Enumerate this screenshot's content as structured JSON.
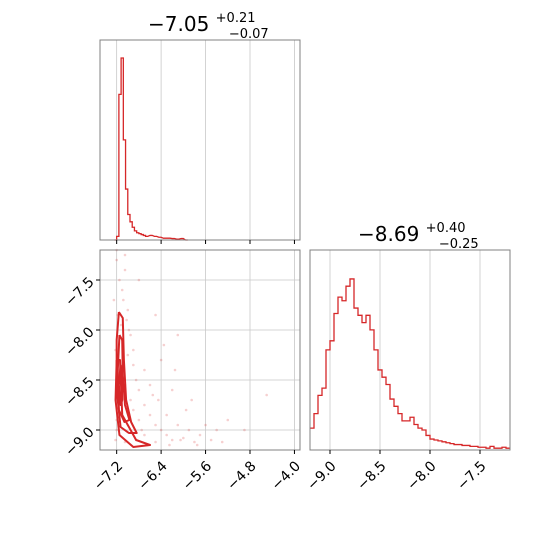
{
  "chart_data": [
    {
      "type": "histogram",
      "panel": "marginal-param1",
      "title": "−7.05",
      "title_sup": "+0.21",
      "title_sub": "−0.07",
      "color": "#d62728",
      "xlim": [
        -7.5,
        -3.9
      ],
      "grid": true,
      "x_ticks": [
        -7.2,
        -6.4,
        -5.6,
        -4.8,
        -4.0
      ],
      "bins": [
        [
          -7.24,
          0.0
        ],
        [
          -7.2,
          0.02
        ],
        [
          -7.16,
          0.8
        ],
        [
          -7.12,
          1.0
        ],
        [
          -7.08,
          0.55
        ],
        [
          -7.04,
          0.28
        ],
        [
          -7.0,
          0.14
        ],
        [
          -6.96,
          0.1
        ],
        [
          -6.92,
          0.07
        ],
        [
          -6.88,
          0.05
        ],
        [
          -6.84,
          0.04
        ],
        [
          -6.8,
          0.035
        ],
        [
          -6.76,
          0.03
        ],
        [
          -6.72,
          0.025
        ],
        [
          -6.68,
          0.02
        ],
        [
          -6.6,
          0.025
        ],
        [
          -6.52,
          0.02
        ],
        [
          -6.44,
          0.015
        ],
        [
          -6.36,
          0.01
        ],
        [
          -6.28,
          0.01
        ],
        [
          -6.2,
          0.008
        ],
        [
          -6.12,
          0.005
        ],
        [
          -6.04,
          0.008
        ],
        [
          -5.96,
          0.0
        ]
      ]
    },
    {
      "type": "histogram",
      "panel": "marginal-param2",
      "title": "−8.69",
      "title_sup": "+0.40",
      "title_sub": "−0.25",
      "color": "#d62728",
      "xlim": [
        -9.2,
        -7.2
      ],
      "grid": true,
      "x_ticks": [
        -9.0,
        -8.5,
        -8.0,
        -7.5
      ],
      "bins": [
        [
          -9.2,
          0.12
        ],
        [
          -9.16,
          0.2
        ],
        [
          -9.12,
          0.3
        ],
        [
          -9.08,
          0.34
        ],
        [
          -9.04,
          0.55
        ],
        [
          -9.0,
          0.6
        ],
        [
          -8.96,
          0.75
        ],
        [
          -8.92,
          0.84
        ],
        [
          -8.88,
          0.82
        ],
        [
          -8.84,
          0.9
        ],
        [
          -8.8,
          0.94
        ],
        [
          -8.76,
          0.78
        ],
        [
          -8.72,
          0.74
        ],
        [
          -8.68,
          0.7
        ],
        [
          -8.64,
          0.74
        ],
        [
          -8.6,
          0.66
        ],
        [
          -8.56,
          0.55
        ],
        [
          -8.52,
          0.44
        ],
        [
          -8.48,
          0.4
        ],
        [
          -8.44,
          0.36
        ],
        [
          -8.4,
          0.28
        ],
        [
          -8.36,
          0.24
        ],
        [
          -8.32,
          0.2
        ],
        [
          -8.28,
          0.16
        ],
        [
          -8.24,
          0.16
        ],
        [
          -8.2,
          0.18
        ],
        [
          -8.16,
          0.14
        ],
        [
          -8.12,
          0.12
        ],
        [
          -8.08,
          0.11
        ],
        [
          -8.04,
          0.08
        ],
        [
          -8.0,
          0.06
        ],
        [
          -7.96,
          0.055
        ],
        [
          -7.92,
          0.05
        ],
        [
          -7.88,
          0.045
        ],
        [
          -7.84,
          0.04
        ],
        [
          -7.8,
          0.035
        ],
        [
          -7.76,
          0.03
        ],
        [
          -7.72,
          0.03
        ],
        [
          -7.68,
          0.025
        ],
        [
          -7.64,
          0.025
        ],
        [
          -7.6,
          0.02
        ],
        [
          -7.56,
          0.02
        ],
        [
          -7.52,
          0.015
        ],
        [
          -7.48,
          0.015
        ],
        [
          -7.44,
          0.01
        ],
        [
          -7.4,
          0.02
        ],
        [
          -7.36,
          0.01
        ],
        [
          -7.32,
          0.01
        ],
        [
          -7.28,
          0.015
        ],
        [
          -7.24,
          0.01
        ]
      ]
    },
    {
      "type": "scatter",
      "panel": "joint",
      "color": "#d62728",
      "xlim": [
        -7.5,
        -3.9
      ],
      "ylim": [
        -9.2,
        -7.2
      ],
      "grid": true,
      "x_ticks": [
        -7.2,
        -6.4,
        -5.6,
        -4.8,
        -4.0
      ],
      "y_ticks": [
        -7.5,
        -8.0,
        -8.5,
        -9.0
      ],
      "points": [
        [
          -7.2,
          -7.3
        ],
        [
          -7.05,
          -7.4
        ],
        [
          -7.15,
          -7.5
        ],
        [
          -7.1,
          -7.6
        ],
        [
          -7.25,
          -7.7
        ],
        [
          -7.0,
          -7.8
        ],
        [
          -7.18,
          -7.85
        ],
        [
          -7.12,
          -7.95
        ],
        [
          -6.95,
          -8.05
        ],
        [
          -7.1,
          -8.1
        ],
        [
          -7.22,
          -8.2
        ],
        [
          -7.0,
          -8.25
        ],
        [
          -6.9,
          -8.35
        ],
        [
          -7.15,
          -8.4
        ],
        [
          -6.85,
          -8.5
        ],
        [
          -7.05,
          -8.55
        ],
        [
          -6.8,
          -8.6
        ],
        [
          -6.95,
          -8.7
        ],
        [
          -6.7,
          -8.75
        ],
        [
          -6.9,
          -8.8
        ],
        [
          -6.6,
          -8.85
        ],
        [
          -6.8,
          -8.9
        ],
        [
          -6.5,
          -8.95
        ],
        [
          -6.4,
          -9.0
        ],
        [
          -6.7,
          -9.05
        ],
        [
          -6.3,
          -9.05
        ],
        [
          -6.2,
          -9.1
        ],
        [
          -6.0,
          -9.08
        ],
        [
          -5.8,
          -9.12
        ],
        [
          -6.5,
          -9.12
        ],
        [
          -6.9,
          -8.2
        ],
        [
          -6.7,
          -8.4
        ],
        [
          -6.6,
          -8.55
        ],
        [
          -6.45,
          -8.7
        ],
        [
          -6.3,
          -8.85
        ],
        [
          -6.1,
          -8.95
        ],
        [
          -5.9,
          -9.0
        ],
        [
          -5.7,
          -9.05
        ],
        [
          -5.5,
          -9.1
        ],
        [
          -5.3,
          -9.12
        ],
        [
          -6.4,
          -8.3
        ],
        [
          -6.2,
          -8.6
        ],
        [
          -5.95,
          -8.8
        ],
        [
          -5.6,
          -8.95
        ],
        [
          -5.4,
          -9.0
        ],
        [
          -7.08,
          -7.7
        ],
        [
          -7.02,
          -7.9
        ],
        [
          -6.98,
          -8.0
        ],
        [
          -7.2,
          -8.9
        ],
        [
          -7.2,
          -9.0
        ],
        [
          -7.22,
          -9.1
        ],
        [
          -7.05,
          -9.12
        ],
        [
          -6.85,
          -9.1
        ],
        [
          -6.75,
          -9.0
        ],
        [
          -6.55,
          -8.65
        ],
        [
          -6.35,
          -8.15
        ],
        [
          -6.15,
          -8.4
        ],
        [
          -5.85,
          -8.7
        ],
        [
          -4.5,
          -8.65
        ],
        [
          -5.2,
          -8.9
        ],
        [
          -6.05,
          -9.1
        ],
        [
          -6.25,
          -9.15
        ],
        [
          -6.65,
          -9.15
        ],
        [
          -5.75,
          -9.15
        ],
        [
          -4.9,
          -9.0
        ],
        [
          -6.1,
          -8.05
        ],
        [
          -6.5,
          -7.85
        ],
        [
          -6.8,
          -7.5
        ],
        [
          -7.2,
          -7.2
        ],
        [
          -7.05,
          -7.25
        ]
      ],
      "contours": [
        [
          [
            -7.16,
            -7.82
          ],
          [
            -7.09,
            -7.88
          ],
          [
            -7.07,
            -8.3
          ],
          [
            -7.03,
            -8.7
          ],
          [
            -6.94,
            -8.92
          ],
          [
            -6.84,
            -9.03
          ],
          [
            -6.98,
            -9.03
          ],
          [
            -7.13,
            -8.97
          ],
          [
            -7.2,
            -8.6
          ],
          [
            -7.2,
            -8.1
          ],
          [
            -7.16,
            -7.82
          ]
        ],
        [
          [
            -7.15,
            -8.05
          ],
          [
            -7.1,
            -8.1
          ],
          [
            -7.09,
            -8.45
          ],
          [
            -7.05,
            -8.75
          ],
          [
            -6.97,
            -8.9
          ],
          [
            -7.06,
            -8.92
          ],
          [
            -7.16,
            -8.8
          ],
          [
            -7.18,
            -8.4
          ],
          [
            -7.15,
            -8.05
          ]
        ],
        [
          [
            -7.13,
            -8.35
          ],
          [
            -7.11,
            -8.4
          ],
          [
            -7.1,
            -8.7
          ],
          [
            -7.13,
            -8.75
          ],
          [
            -7.16,
            -8.55
          ],
          [
            -7.13,
            -8.35
          ]
        ],
        [
          [
            -7.2,
            -8.3
          ],
          [
            -7.14,
            -8.3
          ],
          [
            -7.1,
            -8.85
          ],
          [
            -6.85,
            -9.1
          ],
          [
            -6.6,
            -9.15
          ],
          [
            -6.9,
            -9.17
          ],
          [
            -7.15,
            -9.05
          ],
          [
            -7.22,
            -8.7
          ],
          [
            -7.2,
            -8.3
          ]
        ]
      ]
    }
  ]
}
